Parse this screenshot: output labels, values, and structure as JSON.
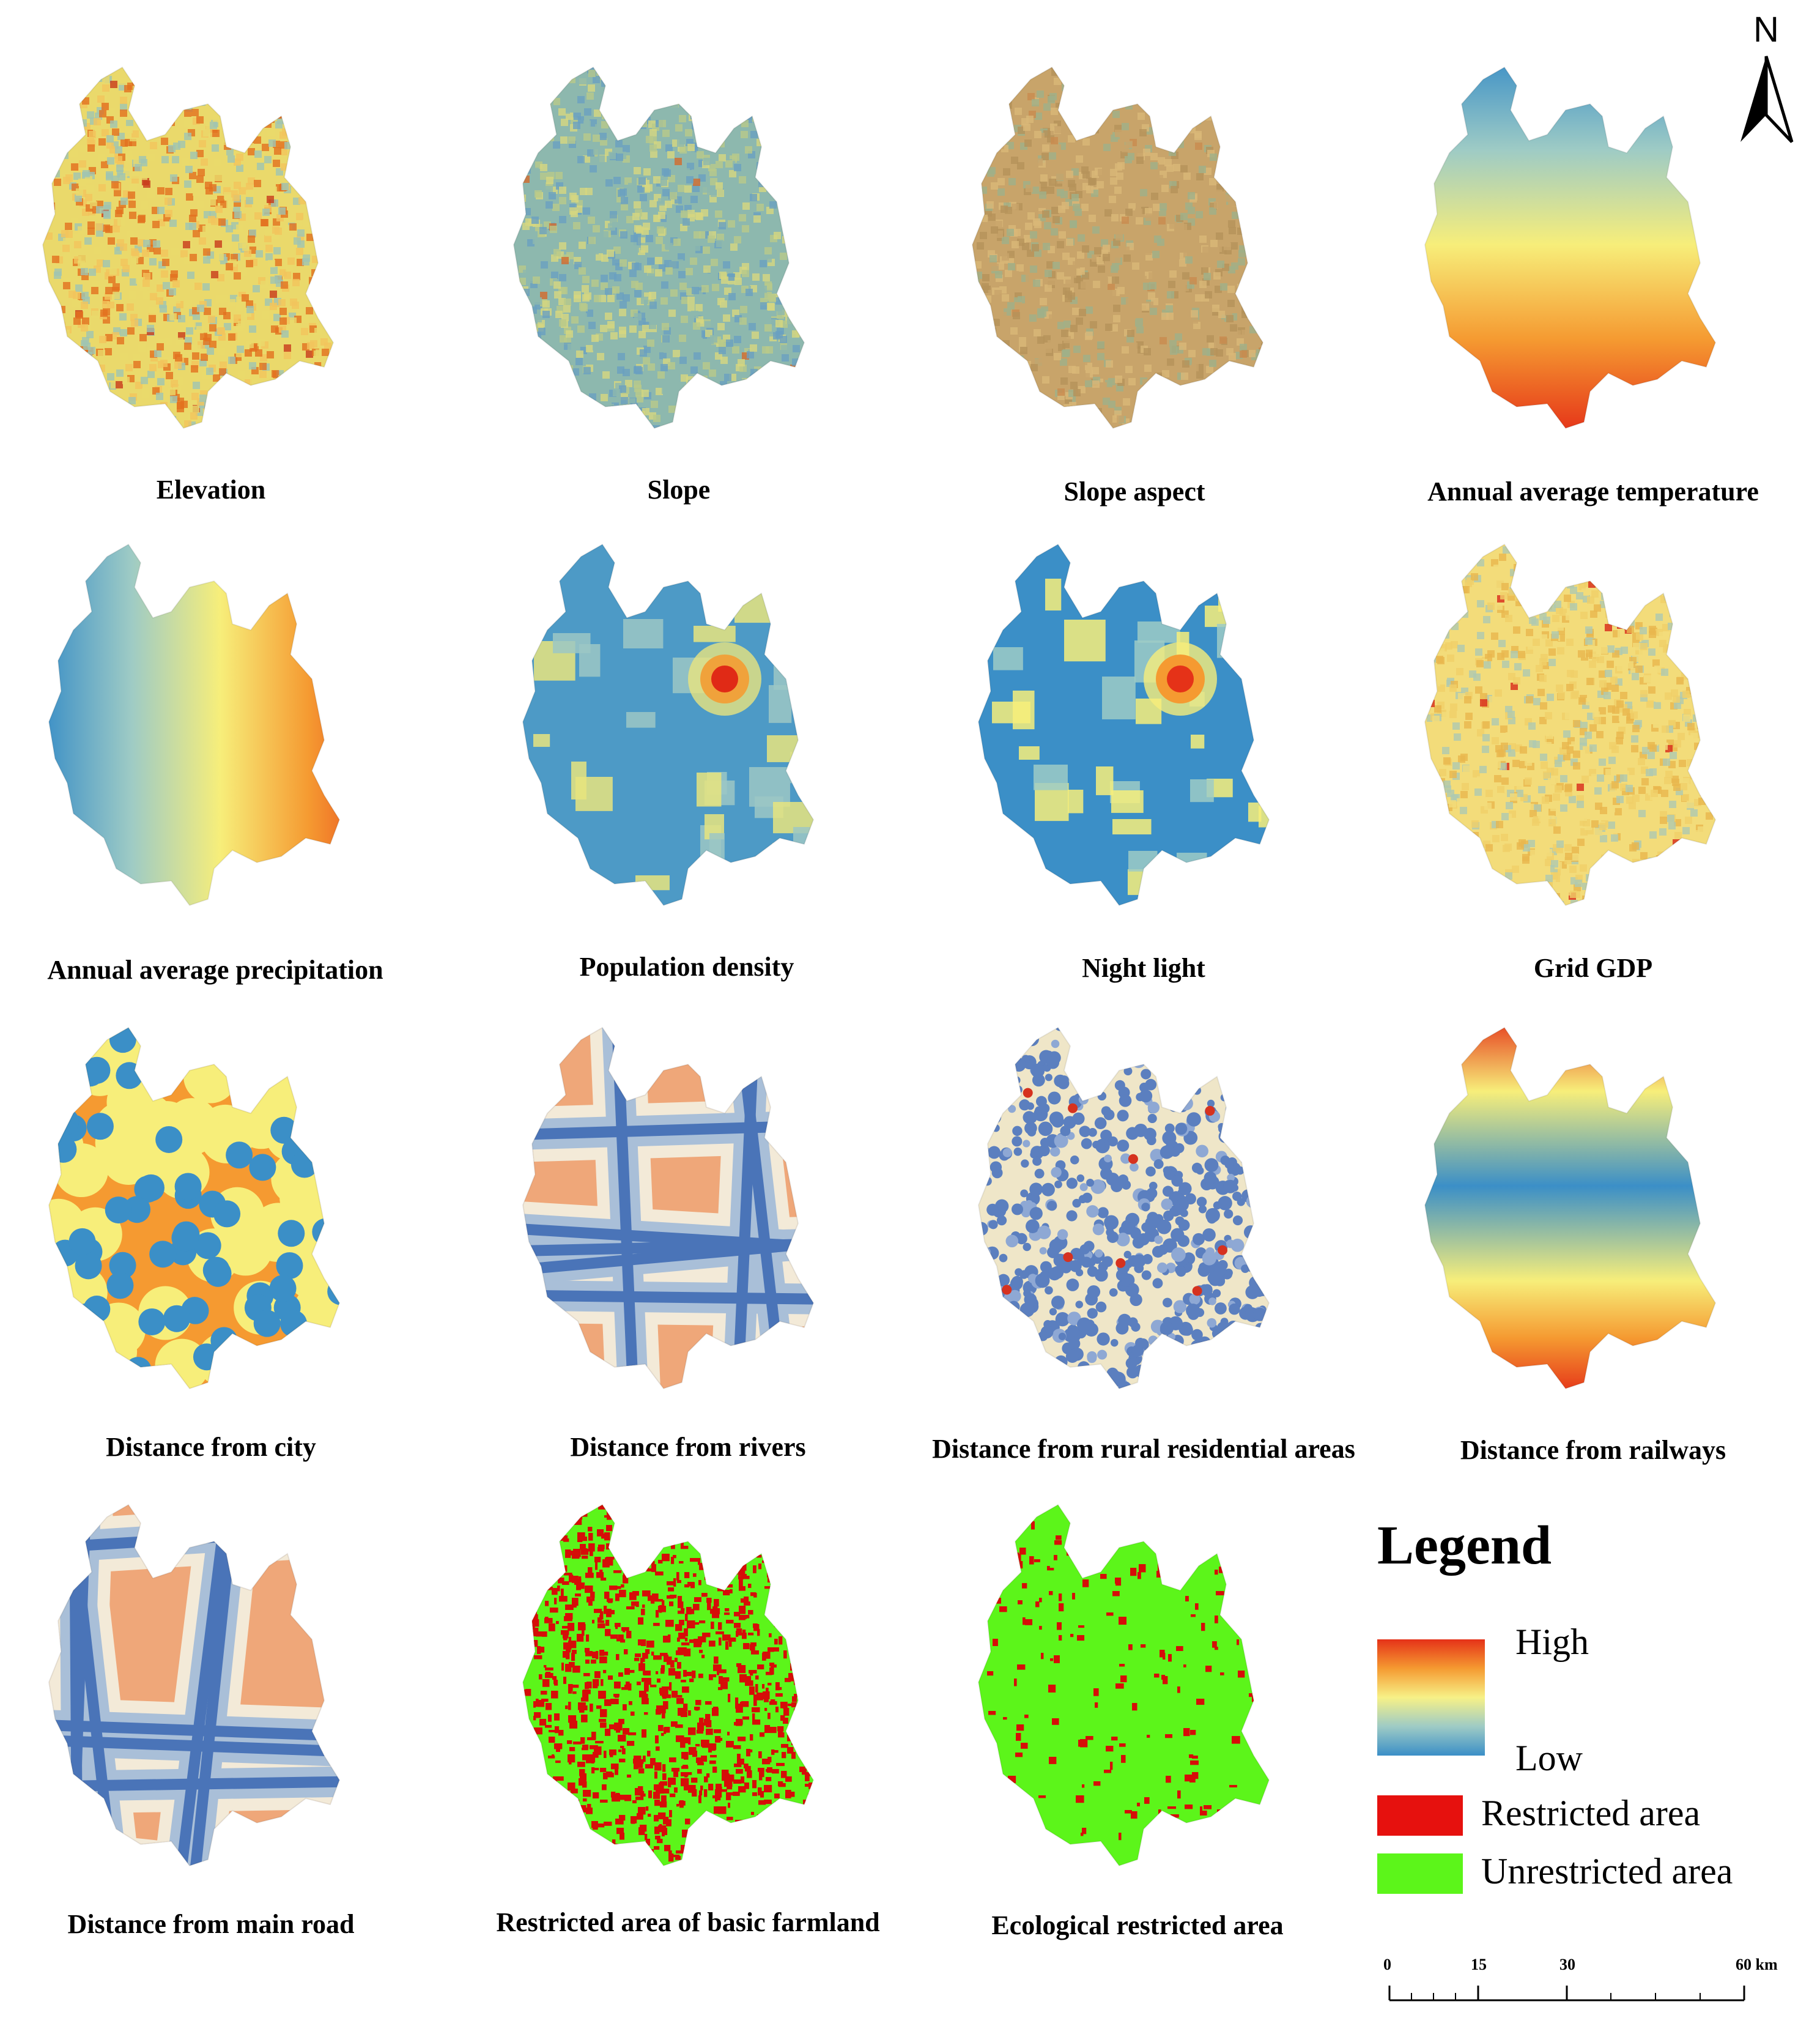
{
  "panels": [
    {
      "caption": "Elevation",
      "style": "noise",
      "colors": [
        "#ead96b",
        "#f2c45c",
        "#9fc4b3",
        "#e2701f",
        "#c8391b"
      ]
    },
    {
      "caption": "Slope",
      "style": "noise",
      "colors": [
        "#8db8ae",
        "#b9c98a",
        "#6aa0c0",
        "#d7d77f",
        "#d46a2c"
      ]
    },
    {
      "caption": "Slope aspect",
      "style": "noise",
      "colors": [
        "#c8a46a",
        "#b5925a",
        "#d9b878",
        "#9fb08a",
        "#c98b4f"
      ]
    },
    {
      "caption": "Annual average temperature",
      "style": "gradient-v",
      "colors": [
        "#3b8fc7",
        "#9ecbc5",
        "#f7ee7a",
        "#f59a31",
        "#e53218"
      ]
    },
    {
      "caption": "Annual average precipitation",
      "style": "gradient-h",
      "colors": [
        "#3b8fc7",
        "#9ecbc5",
        "#f7ee7a",
        "#f59a31",
        "#e53218"
      ]
    },
    {
      "caption": "Population density",
      "style": "blobs",
      "colors": [
        "#4d9ac6",
        "#9cc7c4",
        "#e8e47e",
        "#f0a23b",
        "#e02a16"
      ]
    },
    {
      "caption": "Night light",
      "style": "blobs",
      "colors": [
        "#3b8fc7",
        "#9ecbc5",
        "#f7ee7a",
        "#f59a31",
        "#e53218"
      ]
    },
    {
      "caption": "Grid GDP",
      "style": "noise",
      "colors": [
        "#f3dc7a",
        "#f0cf69",
        "#aec9b1",
        "#e9b64e",
        "#d8291a"
      ]
    },
    {
      "caption": "Distance from city",
      "style": "dots",
      "colors": [
        "#3b8fc7",
        "#9ecbc5",
        "#f7ee7a",
        "#f59a31",
        "#e53218"
      ]
    },
    {
      "caption": "Distance from rivers",
      "style": "lines",
      "colors": [
        "#4a74b8",
        "#a9bfd8",
        "#f3ead8",
        "#efa779",
        "#d9442b"
      ]
    },
    {
      "caption": "Distance from rural residential areas",
      "style": "dense",
      "colors": [
        "#5b7fbf",
        "#8ea8d4",
        "#efe6c8",
        "#e88c5f",
        "#d6321f"
      ]
    },
    {
      "caption": "Distance from railways",
      "style": "band",
      "colors": [
        "#3b8fc7",
        "#9ecbc5",
        "#f7ee7a",
        "#f59a31",
        "#e53218"
      ]
    },
    {
      "caption": "Distance from main road",
      "style": "lines",
      "colors": [
        "#4a74b8",
        "#a9bfd8",
        "#f3ead8",
        "#efa779",
        "#d9442b"
      ]
    },
    {
      "caption": "Restricted area of basic farmland",
      "style": "binary",
      "colors": [
        "#5cf51a",
        "#d60d08"
      ]
    },
    {
      "caption": "Ecological restricted area",
      "style": "binary",
      "colors": [
        "#5cf51a",
        "#d60d08"
      ]
    }
  ],
  "legend": {
    "title": "Legend",
    "high_label": "High",
    "low_label": "Low",
    "restricted_label": "Restricted area",
    "unrestricted_label": "Unrestricted area",
    "restricted_color": "#e6110e",
    "unrestricted_color": "#5cf51a"
  },
  "scale_bar": {
    "ticks": [
      "0",
      "15",
      "30",
      "60 km"
    ]
  },
  "north_arrow": {
    "label": "N"
  }
}
